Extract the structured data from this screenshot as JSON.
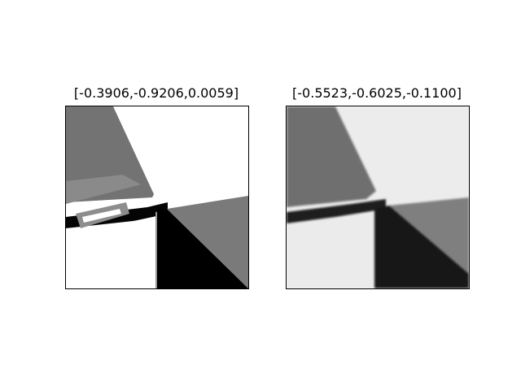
{
  "figure": {
    "panels": [
      {
        "title": "[-0.3906,-0.9206,0.0059]",
        "image": "grayscale-render"
      },
      {
        "title": "[-0.5523,-0.6025,-0.1100]",
        "image": "grayscale-reconstruction"
      }
    ]
  }
}
